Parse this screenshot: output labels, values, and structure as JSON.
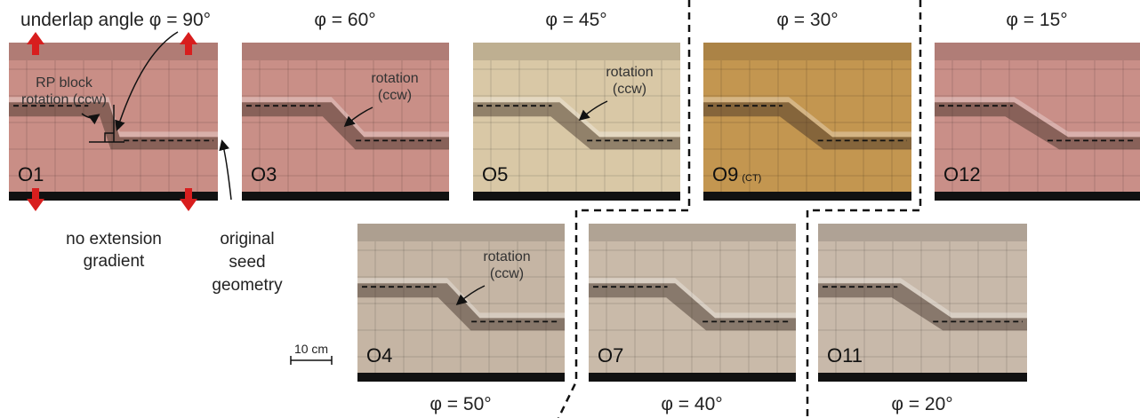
{
  "panels": [
    {
      "label": "O1",
      "caption": "underlap angle φ = 90°",
      "annotation": [
        "RP block",
        "rotation (ccw)"
      ]
    },
    {
      "label": "O3",
      "caption": "φ = 60°",
      "annotation": [
        "rotation",
        "(ccw)"
      ]
    },
    {
      "label": "O5",
      "caption": "φ = 45°",
      "annotation": [
        "rotation",
        "(ccw)"
      ]
    },
    {
      "label": "O9",
      "label_note": "(CT)",
      "caption": "φ = 30°"
    },
    {
      "label": "O12",
      "caption": "φ = 15°"
    },
    {
      "label": "O4",
      "caption": "φ = 50°",
      "annotation": [
        "rotation",
        "(ccw)"
      ]
    },
    {
      "label": "O7",
      "caption": "φ = 40°"
    },
    {
      "label": "O11",
      "caption": "φ = 20°"
    }
  ],
  "notes": {
    "no_extension": [
      "no extension",
      "gradient"
    ],
    "seed": [
      "original",
      "seed",
      "geometry"
    ]
  },
  "scale_bar": "10 cm"
}
